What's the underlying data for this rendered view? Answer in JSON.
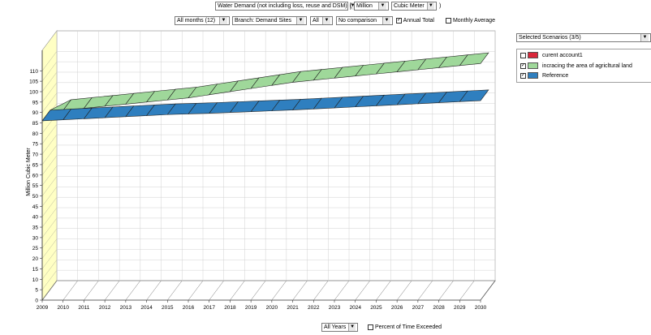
{
  "toolbar": {
    "variable": "Water Demand (not including loss, reuse and DSM)",
    "paren_open": "(",
    "scale": "Million",
    "unit": "Cubic Meter",
    "paren_close": ")",
    "months": "All months (12)",
    "branch": "Branch: Demand Sites",
    "all": "All",
    "comparison": "No comparison",
    "annual_total": "Annual Total",
    "monthly_average": "Monthly Average"
  },
  "scenarios": {
    "selector": "Selected Scenarios (3/5)",
    "items": [
      {
        "name": "curent account1",
        "checked": false,
        "color": "#d9263a"
      },
      {
        "name": "incracing the area of agricltural land",
        "checked": true,
        "color": "#9fd89a"
      },
      {
        "name": "Reference",
        "checked": true,
        "color": "#2f7fbf"
      }
    ]
  },
  "bottom": {
    "years": "All Years",
    "percent_exceeded": "Percent of Time Exceeded"
  },
  "chart_data": {
    "type": "area",
    "ylabel": "Million Cubic Meter",
    "ylim": [
      0,
      110
    ],
    "yticks": [
      0,
      5,
      10,
      15,
      20,
      25,
      30,
      35,
      40,
      45,
      50,
      55,
      60,
      65,
      70,
      75,
      80,
      85,
      90,
      95,
      100,
      105,
      110
    ],
    "x": [
      2009,
      2010,
      2011,
      2012,
      2013,
      2014,
      2015,
      2016,
      2017,
      2018,
      2019,
      2020,
      2021,
      2022,
      2023,
      2024,
      2025,
      2026,
      2027,
      2028,
      2029,
      2030
    ],
    "series": [
      {
        "name": "Reference",
        "color": "#2f7fbf",
        "values": [
          86,
          86.5,
          87,
          87.5,
          88,
          88.5,
          89,
          89.3,
          89.6,
          90,
          90.4,
          90.8,
          91.2,
          91.7,
          92.2,
          92.7,
          93.2,
          93.7,
          94.2,
          94.7,
          95.2,
          95.7
        ]
      },
      {
        "name": "incracing the area of agricltural land",
        "color": "#9fd89a",
        "values": [
          86,
          91,
          92,
          93,
          94,
          95,
          96,
          97,
          98.5,
          100,
          101.5,
          103,
          104.5,
          105.5,
          106.5,
          107.5,
          108.5,
          109.5,
          110.5,
          111.5,
          112.5,
          113.5
        ]
      }
    ],
    "grid": true,
    "view": "3d"
  }
}
